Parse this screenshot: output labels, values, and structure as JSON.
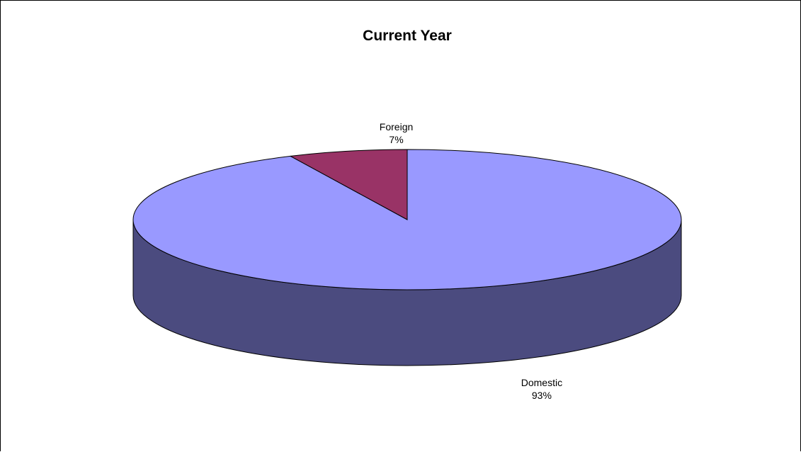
{
  "chart_data": {
    "type": "pie",
    "title": "Current Year",
    "style": "3d",
    "slices": [
      {
        "name": "Domestic",
        "value": 93,
        "label_pct": "93%",
        "top_color": "#9999FF",
        "side_color": "#4B4B7F"
      },
      {
        "name": "Foreign",
        "value": 7,
        "label_pct": "7%",
        "top_color": "#993366",
        "side_color": "#4C1933"
      }
    ],
    "legend": "none"
  }
}
